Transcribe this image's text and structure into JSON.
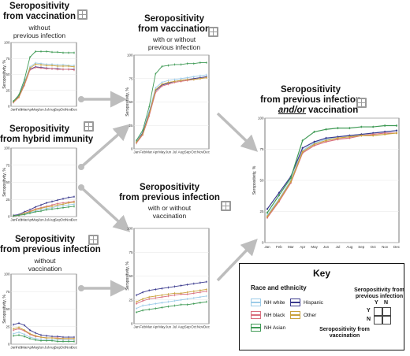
{
  "months": [
    "Jan",
    "Feb",
    "Mar",
    "Apr",
    "May",
    "Jun",
    "Jul",
    "Aug",
    "Sep",
    "Oct",
    "Nov",
    "Dec"
  ],
  "axis_label": "Seropositivity, %",
  "big_ticks": [
    "0",
    "25",
    "50",
    "75",
    "100"
  ],
  "race_colors": {
    "NH white": "#9ccbe8",
    "Hispanic": "#3a3a8e",
    "NH black": "#d9707f",
    "Other": "#c9a23c",
    "NH Asian": "#3f9a55"
  },
  "panels": {
    "vax_without": {
      "title": "Seropositivity\nfrom vaccination",
      "subtitle": "without\nprevious infection"
    },
    "hybrid": {
      "title": "Seropositivity\nfrom hybrid immunity"
    },
    "inf_without": {
      "title": "Seropositivity\nfrom previous infection",
      "subtitle": "without\nvaccination"
    },
    "vax_with": {
      "title": "Seropositivity\nfrom vaccination",
      "subtitle": "with or without\nprevious infection"
    },
    "inf_with": {
      "title": "Seropositivity\nfrom previous infection",
      "subtitle": "with or without\nvaccination"
    },
    "combined": {
      "title": "Seropositivity\nfrom previous infection",
      "title_italic": "and/or",
      "title_end": "vaccination"
    }
  },
  "key": {
    "title": "Key",
    "legend_title": "Race and ethnicity",
    "entries": [
      "NH white",
      "Hispanic",
      "NH black",
      "Other",
      "NH Asian"
    ],
    "grid_label_top": "Seropositivity from\nprevious infection",
    "grid_y": "Y",
    "grid_n": "N",
    "grid_label_bottom": "Seropositivity from\nvaccination"
  },
  "chart_data": [
    {
      "id": "vax_without",
      "type": "line",
      "ylim": [
        0,
        100
      ],
      "series": [
        {
          "name": "NH white",
          "values": [
            8,
            17,
            38,
            62,
            68,
            67,
            66,
            66,
            65,
            65,
            64,
            64
          ]
        },
        {
          "name": "Hispanic",
          "values": [
            7,
            16,
            36,
            58,
            62,
            61,
            60,
            59,
            59,
            58,
            58,
            58
          ]
        },
        {
          "name": "NH black",
          "values": [
            6,
            14,
            33,
            57,
            61,
            60,
            59,
            59,
            58,
            58,
            58,
            57
          ]
        },
        {
          "name": "Other",
          "values": [
            7,
            15,
            35,
            60,
            66,
            65,
            64,
            64,
            63,
            63,
            63,
            62
          ]
        },
        {
          "name": "NH Asian",
          "values": [
            8,
            18,
            42,
            77,
            86,
            86,
            86,
            85,
            85,
            84,
            84,
            84
          ]
        }
      ]
    },
    {
      "id": "hybrid",
      "type": "line",
      "ylim": [
        0,
        100
      ],
      "series": [
        {
          "name": "NH white",
          "values": [
            1,
            2,
            4,
            6,
            8,
            10,
            12,
            13,
            15,
            16,
            17,
            18
          ]
        },
        {
          "name": "Hispanic",
          "values": [
            2,
            3,
            7,
            10,
            14,
            17,
            20,
            22,
            24,
            26,
            28,
            29
          ]
        },
        {
          "name": "NH black",
          "values": [
            1,
            2,
            5,
            8,
            11,
            13,
            15,
            17,
            19,
            20,
            21,
            22
          ]
        },
        {
          "name": "Other",
          "values": [
            1,
            2,
            5,
            7,
            10,
            12,
            14,
            15,
            17,
            18,
            20,
            21
          ]
        },
        {
          "name": "NH Asian",
          "values": [
            1,
            2,
            3,
            5,
            7,
            8,
            10,
            11,
            12,
            13,
            14,
            15
          ]
        }
      ]
    },
    {
      "id": "inf_without",
      "type": "line",
      "ylim": [
        0,
        100
      ],
      "series": [
        {
          "name": "NH white",
          "values": [
            15,
            17,
            14,
            10,
            8,
            7,
            7,
            6,
            6,
            6,
            6,
            6
          ]
        },
        {
          "name": "Hispanic",
          "values": [
            28,
            30,
            27,
            20,
            16,
            13,
            12,
            11,
            11,
            10,
            10,
            10
          ]
        },
        {
          "name": "NH black",
          "values": [
            20,
            22,
            19,
            14,
            11,
            10,
            9,
            9,
            9,
            8,
            8,
            8
          ]
        },
        {
          "name": "Other",
          "values": [
            22,
            24,
            20,
            15,
            12,
            10,
            9,
            9,
            8,
            8,
            8,
            8
          ]
        },
        {
          "name": "NH Asian",
          "values": [
            12,
            13,
            11,
            8,
            6,
            5,
            5,
            5,
            4,
            4,
            4,
            4
          ]
        }
      ]
    },
    {
      "id": "vax_with",
      "type": "line",
      "ylim": [
        0,
        100
      ],
      "series": [
        {
          "name": "NH white",
          "values": [
            8,
            18,
            40,
            65,
            71,
            73,
            74,
            75,
            76,
            77,
            78,
            79
          ]
        },
        {
          "name": "Hispanic",
          "values": [
            7,
            17,
            38,
            62,
            68,
            70,
            72,
            73,
            74,
            75,
            76,
            77
          ]
        },
        {
          "name": "NH black",
          "values": [
            6,
            15,
            35,
            60,
            67,
            69,
            71,
            72,
            73,
            74,
            75,
            76
          ]
        },
        {
          "name": "Other",
          "values": [
            7,
            16,
            37,
            63,
            69,
            71,
            72,
            73,
            74,
            74,
            75,
            76
          ]
        },
        {
          "name": "NH Asian",
          "values": [
            9,
            20,
            45,
            80,
            88,
            89,
            90,
            90,
            91,
            91,
            92,
            92
          ]
        }
      ]
    },
    {
      "id": "inf_with",
      "type": "line",
      "ylim": [
        0,
        100
      ],
      "series": [
        {
          "name": "NH white",
          "values": [
            16,
            19,
            20,
            21,
            22,
            23,
            24,
            25,
            26,
            27,
            28,
            29
          ]
        },
        {
          "name": "Hispanic",
          "values": [
            30,
            33,
            35,
            36,
            37,
            38,
            39,
            40,
            41,
            42,
            43,
            44
          ]
        },
        {
          "name": "NH black",
          "values": [
            21,
            24,
            26,
            27,
            28,
            29,
            30,
            31,
            31,
            32,
            33,
            34
          ]
        },
        {
          "name": "Other",
          "values": [
            23,
            26,
            28,
            29,
            30,
            31,
            32,
            32,
            33,
            34,
            35,
            36
          ]
        },
        {
          "name": "NH Asian",
          "values": [
            12,
            14,
            15,
            16,
            17,
            18,
            19,
            20,
            20,
            21,
            22,
            23
          ]
        }
      ]
    },
    {
      "id": "combined",
      "type": "line",
      "ylim": [
        0,
        100
      ],
      "series": [
        {
          "name": "NH white",
          "values": [
            22,
            35,
            50,
            74,
            80,
            83,
            85,
            86,
            87,
            88,
            89,
            90
          ]
        },
        {
          "name": "Hispanic",
          "values": [
            27,
            40,
            53,
            76,
            81,
            84,
            85,
            86,
            87,
            88,
            89,
            90
          ]
        },
        {
          "name": "NH black",
          "values": [
            20,
            33,
            48,
            72,
            78,
            81,
            83,
            84,
            86,
            87,
            88,
            88
          ]
        },
        {
          "name": "Other",
          "values": [
            21,
            34,
            49,
            73,
            79,
            82,
            84,
            85,
            86,
            86,
            87,
            88
          ]
        },
        {
          "name": "NH Asian",
          "values": [
            24,
            38,
            52,
            82,
            89,
            91,
            92,
            92,
            93,
            93,
            94,
            94
          ]
        }
      ]
    }
  ]
}
